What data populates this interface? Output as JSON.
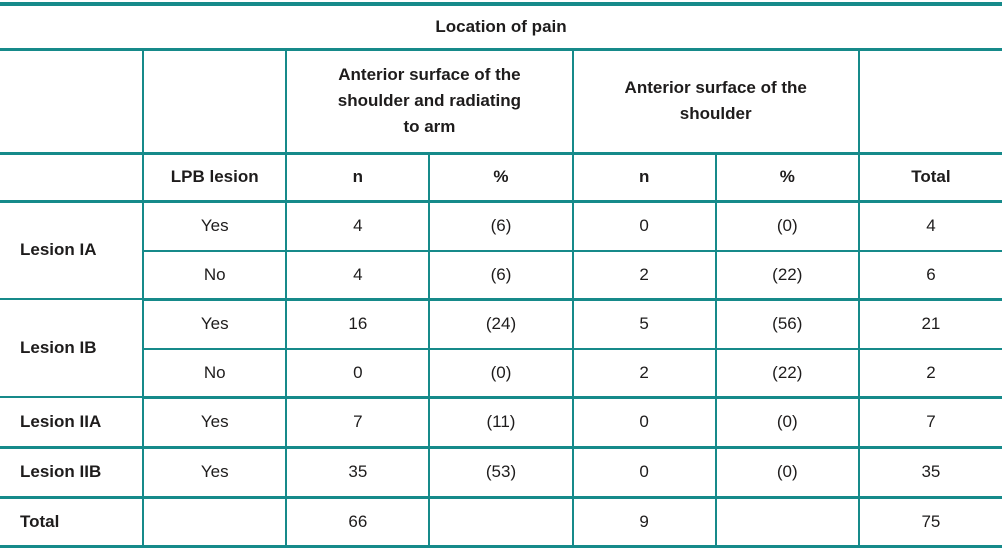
{
  "table": {
    "title": "Location of pain",
    "group_headers": [
      "Anterior surface of the\nshoulder and radiating\nto arm",
      "Anterior surface of the\nshoulder"
    ],
    "column_headers": {
      "lpb": "LPB lesion",
      "n_arm": "n",
      "pct_arm": "%",
      "n_shoulder": "n",
      "pct_shoulder": "%",
      "total": "Total"
    },
    "rows": [
      {
        "label": "Lesion IA",
        "lpb": "Yes",
        "n_arm": "4",
        "pct_arm": "(6)",
        "n_shoulder": "0",
        "pct_shoulder": "(0)",
        "total": "4"
      },
      {
        "label": "",
        "lpb": "No",
        "n_arm": "4",
        "pct_arm": "(6)",
        "n_shoulder": "2",
        "pct_shoulder": "(22)",
        "total": "6"
      },
      {
        "label": "Lesion IB",
        "lpb": "Yes",
        "n_arm": "16",
        "pct_arm": "(24)",
        "n_shoulder": "5",
        "pct_shoulder": "(56)",
        "total": "21"
      },
      {
        "label": "",
        "lpb": "No",
        "n_arm": "0",
        "pct_arm": "(0)",
        "n_shoulder": "2",
        "pct_shoulder": "(22)",
        "total": "2"
      },
      {
        "label": "Lesion IIA",
        "lpb": "Yes",
        "n_arm": "7",
        "pct_arm": "(11)",
        "n_shoulder": "0",
        "pct_shoulder": "(0)",
        "total": "7"
      },
      {
        "label": "Lesion IIB",
        "lpb": "Yes",
        "n_arm": "35",
        "pct_arm": "(53)",
        "n_shoulder": "0",
        "pct_shoulder": "(0)",
        "total": "35"
      }
    ],
    "total_row": {
      "label": "Total",
      "lpb": "",
      "n_arm": "66",
      "pct_arm": "",
      "n_shoulder": "9",
      "pct_shoulder": "",
      "total": "75"
    }
  },
  "colors": {
    "border": "#168a8a",
    "text": "#1e1c1c",
    "background": "#ffffff"
  }
}
